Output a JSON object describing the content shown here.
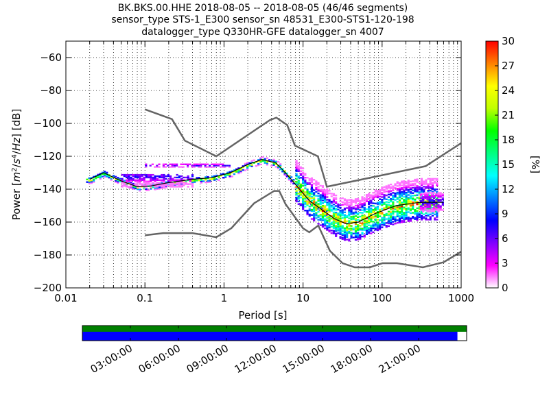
{
  "chart_data": {
    "type": "heatmap",
    "title_lines": [
      "BK.BKS.00.HHE   2018-08-05 -- 2018-08-05  (46/46 segments)",
      "sensor_type STS-1_E300 sensor_sn 48531_E300-STS1-120-198",
      "datalogger_type Q330HR-GFE datalogger_sn 4007"
    ],
    "xlabel": "Period [s]",
    "ylabel": "Power [m²/s⁴/Hz] [dB]",
    "x_scale": "log",
    "xlim": [
      0.01,
      1000
    ],
    "ylim": [
      -200,
      -50
    ],
    "x_ticks": [
      0.01,
      0.1,
      1,
      10,
      100,
      1000
    ],
    "x_tick_labels": [
      "0.01",
      "0.1",
      "1",
      "10",
      "100",
      "1000"
    ],
    "y_ticks": [
      -200,
      -180,
      -160,
      -140,
      -120,
      -100,
      -80,
      -60
    ],
    "y_tick_labels": [
      "−200",
      "−180",
      "−160",
      "−140",
      "−120",
      "−100",
      "−80",
      "−60"
    ],
    "grid": true,
    "colorbar": {
      "label": "[%]",
      "min": 0,
      "max": 30,
      "ticks": [
        0,
        3,
        6,
        9,
        12,
        15,
        18,
        21,
        24,
        27,
        30
      ],
      "colormap": [
        "#ffffff",
        "#ff00ff",
        "#8000ff",
        "#0000ff",
        "#0080ff",
        "#00ffff",
        "#00ff80",
        "#00ff00",
        "#c0ff00",
        "#ffff00",
        "#ff8000",
        "#ff0000"
      ]
    },
    "series": [
      {
        "name": "NHNM",
        "color": "#646464",
        "points": [
          [
            0.1,
            -91.5
          ],
          [
            0.22,
            -97.4
          ],
          [
            0.32,
            -110.5
          ],
          [
            0.8,
            -120
          ],
          [
            3.8,
            -98
          ],
          [
            4.6,
            -96.5
          ],
          [
            6.3,
            -101
          ],
          [
            7.9,
            -113.5
          ],
          [
            15.4,
            -120
          ],
          [
            20,
            -138.5
          ],
          [
            354.8,
            -126
          ],
          [
            1000,
            -112
          ]
        ]
      },
      {
        "name": "NLNM",
        "color": "#646464",
        "points": [
          [
            0.1,
            -168
          ],
          [
            0.17,
            -166.7
          ],
          [
            0.4,
            -166.7
          ],
          [
            0.8,
            -169.2
          ],
          [
            1.24,
            -163.7
          ],
          [
            2.4,
            -148.6
          ],
          [
            4.3,
            -141.1
          ],
          [
            5,
            -141.1
          ],
          [
            6,
            -149
          ],
          [
            10,
            -163.8
          ],
          [
            12,
            -166.2
          ],
          [
            15.6,
            -162.1
          ],
          [
            21.9,
            -177.5
          ],
          [
            31.6,
            -185
          ],
          [
            45,
            -187.5
          ],
          [
            70,
            -187.5
          ],
          [
            101,
            -185
          ],
          [
            154,
            -185
          ],
          [
            328,
            -187.5
          ],
          [
            600,
            -184.4
          ],
          [
            1000,
            -178
          ]
        ]
      },
      {
        "name": "mode",
        "color": "#000000",
        "points": [
          [
            0.02,
            -134
          ],
          [
            0.03,
            -130
          ],
          [
            0.05,
            -135
          ],
          [
            0.08,
            -138.5
          ],
          [
            0.12,
            -138
          ],
          [
            0.2,
            -136
          ],
          [
            0.4,
            -134
          ],
          [
            0.7,
            -133
          ],
          [
            1.2,
            -130
          ],
          [
            2,
            -125
          ],
          [
            3,
            -122
          ],
          [
            4.5,
            -124
          ],
          [
            6,
            -130
          ],
          [
            8,
            -137
          ],
          [
            12,
            -147
          ],
          [
            18,
            -153
          ],
          [
            25,
            -158
          ],
          [
            35,
            -161
          ],
          [
            50,
            -160
          ],
          [
            80,
            -155
          ],
          [
            150,
            -150
          ],
          [
            300,
            -148
          ],
          [
            600,
            -148
          ]
        ]
      }
    ],
    "density_bands": [
      {
        "period_range": [
          0.018,
          20
        ],
        "center": "mode",
        "spread_db": [
          -2,
          2
        ]
      },
      {
        "period_range": [
          0.05,
          0.4
        ],
        "center_db": -132,
        "spread_db": [
          -6,
          2
        ]
      },
      {
        "period_range": [
          0.1,
          1.2
        ],
        "center_db": -125,
        "spread_db": [
          -1,
          1
        ]
      },
      {
        "period_range": [
          8,
          500
        ],
        "center": "mode",
        "spread_db": [
          -10,
          15
        ]
      },
      {
        "period_range": [
          300,
          600
        ],
        "center_db": -147,
        "spread_db": [
          -6,
          6
        ]
      }
    ],
    "data_coverage": {
      "time_tick_labels": [
        "03:00:00",
        "06:00:00",
        "09:00:00",
        "12:00:00",
        "15:00:00",
        "18:00:00",
        "21:00:00"
      ],
      "green_fraction": 1.0,
      "blue_fraction": 0.976
    }
  }
}
